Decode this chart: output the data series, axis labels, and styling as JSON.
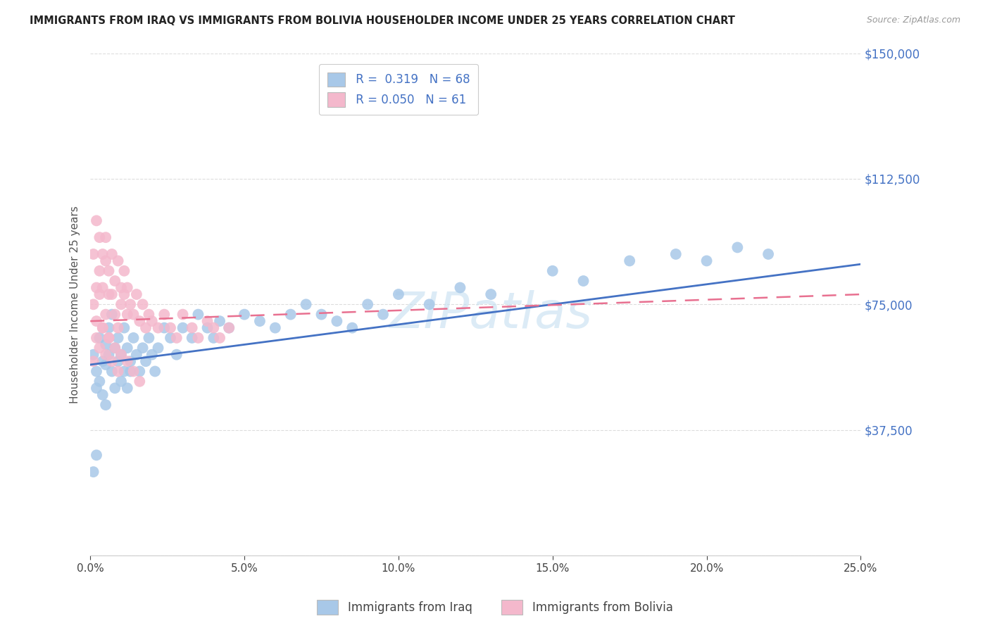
{
  "title": "IMMIGRANTS FROM IRAQ VS IMMIGRANTS FROM BOLIVIA HOUSEHOLDER INCOME UNDER 25 YEARS CORRELATION CHART",
  "source": "Source: ZipAtlas.com",
  "ylabel": "Householder Income Under 25 years",
  "xlim": [
    0.0,
    0.25
  ],
  "ylim": [
    0,
    150000
  ],
  "yticks": [
    0,
    37500,
    75000,
    112500,
    150000
  ],
  "ytick_labels": [
    "",
    "$37,500",
    "$75,000",
    "$112,500",
    "$150,000"
  ],
  "xticks": [
    0.0,
    0.05,
    0.1,
    0.15,
    0.2,
    0.25
  ],
  "xtick_labels": [
    "0.0%",
    "5.0%",
    "10.0%",
    "15.0%",
    "20.0%",
    "25.0%"
  ],
  "iraq_R": 0.319,
  "iraq_N": 68,
  "bolivia_R": 0.05,
  "bolivia_N": 61,
  "iraq_color": "#a8c8e8",
  "bolivia_color": "#f4b8cc",
  "iraq_line_color": "#4472c4",
  "bolivia_line_color": "#e87090",
  "tick_color": "#4472c4",
  "watermark": "ZIPatlas",
  "iraq_line_y0": 57000,
  "iraq_line_y1": 87000,
  "bolivia_line_y0": 70000,
  "bolivia_line_y1": 78000,
  "iraq_x": [
    0.001,
    0.002,
    0.002,
    0.003,
    0.003,
    0.004,
    0.004,
    0.005,
    0.005,
    0.005,
    0.006,
    0.006,
    0.007,
    0.007,
    0.008,
    0.008,
    0.009,
    0.009,
    0.01,
    0.01,
    0.011,
    0.011,
    0.012,
    0.012,
    0.013,
    0.013,
    0.014,
    0.015,
    0.016,
    0.017,
    0.018,
    0.019,
    0.02,
    0.021,
    0.022,
    0.024,
    0.026,
    0.028,
    0.03,
    0.033,
    0.035,
    0.038,
    0.04,
    0.042,
    0.045,
    0.05,
    0.055,
    0.06,
    0.065,
    0.07,
    0.075,
    0.08,
    0.085,
    0.09,
    0.095,
    0.1,
    0.11,
    0.12,
    0.13,
    0.15,
    0.16,
    0.175,
    0.19,
    0.2,
    0.21,
    0.22,
    0.001,
    0.002
  ],
  "iraq_y": [
    60000,
    55000,
    50000,
    65000,
    52000,
    58000,
    48000,
    63000,
    57000,
    45000,
    60000,
    68000,
    55000,
    72000,
    50000,
    62000,
    58000,
    65000,
    52000,
    60000,
    55000,
    68000,
    50000,
    62000,
    58000,
    55000,
    65000,
    60000,
    55000,
    62000,
    58000,
    65000,
    60000,
    55000,
    62000,
    68000,
    65000,
    60000,
    68000,
    65000,
    72000,
    68000,
    65000,
    70000,
    68000,
    72000,
    70000,
    68000,
    72000,
    75000,
    72000,
    70000,
    68000,
    75000,
    72000,
    78000,
    75000,
    80000,
    78000,
    85000,
    82000,
    88000,
    90000,
    88000,
    92000,
    90000,
    25000,
    30000
  ],
  "bolivia_x": [
    0.001,
    0.001,
    0.002,
    0.002,
    0.002,
    0.003,
    0.003,
    0.003,
    0.004,
    0.004,
    0.004,
    0.005,
    0.005,
    0.005,
    0.006,
    0.006,
    0.006,
    0.007,
    0.007,
    0.008,
    0.008,
    0.009,
    0.009,
    0.01,
    0.01,
    0.011,
    0.011,
    0.012,
    0.012,
    0.013,
    0.014,
    0.015,
    0.016,
    0.017,
    0.018,
    0.019,
    0.02,
    0.022,
    0.024,
    0.026,
    0.028,
    0.03,
    0.033,
    0.035,
    0.038,
    0.04,
    0.042,
    0.045,
    0.001,
    0.002,
    0.003,
    0.004,
    0.005,
    0.006,
    0.007,
    0.008,
    0.009,
    0.01,
    0.012,
    0.014,
    0.016
  ],
  "bolivia_y": [
    75000,
    90000,
    100000,
    80000,
    70000,
    95000,
    85000,
    78000,
    90000,
    68000,
    80000,
    88000,
    72000,
    95000,
    78000,
    85000,
    65000,
    90000,
    78000,
    82000,
    72000,
    88000,
    68000,
    80000,
    75000,
    78000,
    85000,
    72000,
    80000,
    75000,
    72000,
    78000,
    70000,
    75000,
    68000,
    72000,
    70000,
    68000,
    72000,
    68000,
    65000,
    72000,
    68000,
    65000,
    70000,
    68000,
    65000,
    68000,
    58000,
    65000,
    62000,
    68000,
    60000,
    65000,
    58000,
    62000,
    55000,
    60000,
    58000,
    55000,
    52000
  ]
}
